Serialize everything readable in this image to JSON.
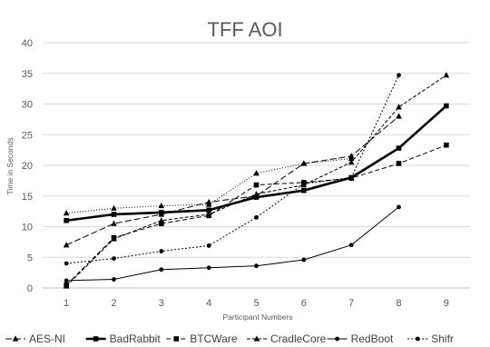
{
  "chart_data": {
    "type": "line",
    "title": "TFF AOI",
    "xlabel": "Participant Numbers",
    "ylabel": "Time in Seconds",
    "x": [
      1,
      2,
      3,
      4,
      5,
      6,
      7,
      8,
      9
    ],
    "ylim": [
      0,
      40
    ],
    "yticks": [
      0,
      5,
      10,
      15,
      20,
      25,
      30,
      35,
      40
    ],
    "grid": true,
    "legend_position": "bottom",
    "series": [
      {
        "name": "AES-NI",
        "marker": "triangle",
        "dash": "7,3",
        "width": 1,
        "values": [
          7,
          10.5,
          12,
          14,
          15,
          20.3,
          21.5,
          28,
          null
        ]
      },
      {
        "name": "BadRabbit",
        "marker": "square",
        "dash": "",
        "width": 2.6,
        "values": [
          11,
          12,
          12.3,
          12.7,
          14.8,
          15.9,
          18,
          22.8,
          29.7
        ]
      },
      {
        "name": "BTCWare",
        "marker": "square",
        "dash": "5,3",
        "width": 1,
        "values": [
          0.5,
          8.2,
          10.5,
          11.8,
          16.8,
          17.2,
          17.9,
          20.3,
          23.3
        ]
      },
      {
        "name": "CradleCore",
        "marker": "triangle",
        "dash": "4,2",
        "width": 1,
        "values": [
          0.3,
          8,
          11,
          12,
          15.3,
          16.8,
          20.5,
          29.5,
          34.7
        ]
      },
      {
        "name": "RedBoot",
        "marker": "circle",
        "dash": "",
        "width": 1,
        "values": [
          1.2,
          1.4,
          3,
          3.3,
          3.6,
          4.6,
          7,
          13.2,
          null
        ]
      },
      {
        "name": "Shifr",
        "marker": "circle",
        "dash": "2,2",
        "width": 1,
        "values": [
          4,
          4.8,
          6,
          6.9,
          11.5,
          17,
          18,
          34.7,
          null
        ]
      },
      {
        "name": "",
        "marker": "triangle",
        "dash": "1,2",
        "width": 1,
        "values": [
          12.2,
          13,
          13.4,
          13.6,
          18.7,
          20.3,
          21.1,
          null,
          null
        ]
      }
    ]
  }
}
